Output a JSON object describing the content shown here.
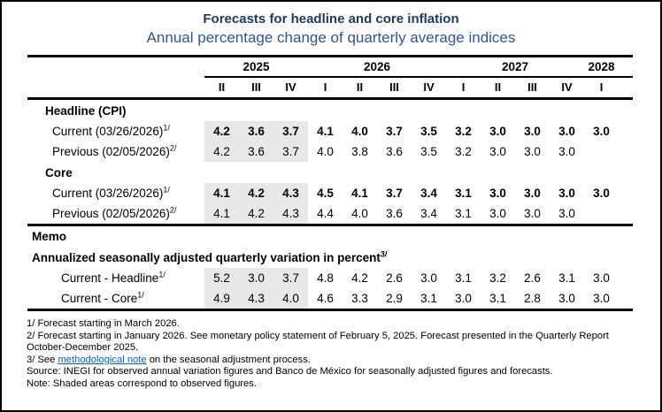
{
  "title": "Forecasts for headline and core inflation",
  "subtitle": "Annual percentage change of quarterly average indices",
  "colors": {
    "title_text": "#1F3864",
    "subtitle_text": "#2F5496",
    "shaded_cells": "#E9E8E8",
    "link": "#0563C1"
  },
  "header": {
    "years": [
      {
        "label": "2025",
        "quarters_spanned": 3
      },
      {
        "label": "2026",
        "quarters_spanned": 4
      },
      {
        "label": "2027",
        "quarters_spanned": 4
      },
      {
        "label": "2028",
        "quarters_spanned": 1
      }
    ],
    "quarters": [
      "II",
      "III",
      "IV",
      "I",
      "II",
      "III",
      "IV",
      "I",
      "II",
      "III",
      "IV",
      "I"
    ]
  },
  "sections": {
    "headline": {
      "label": "Headline (CPI)",
      "current": {
        "label": "Current (03/26/2026)",
        "sup": "1/",
        "values": [
          "4.2",
          "3.6",
          "3.7",
          "4.1",
          "4.0",
          "3.7",
          "3.5",
          "3.2",
          "3.0",
          "3.0",
          "3.0",
          "3.0"
        ]
      },
      "previous": {
        "label": "Previous (02/05/2026)",
        "sup": "2/",
        "values": [
          "4.2",
          "3.6",
          "3.7",
          "4.0",
          "3.8",
          "3.6",
          "3.5",
          "3.2",
          "3.0",
          "3.0",
          "3.0",
          ""
        ]
      }
    },
    "core": {
      "label": "Core",
      "current": {
        "label": "Current (03/26/2026)",
        "sup": "1/",
        "values": [
          "4.1",
          "4.2",
          "4.3",
          "4.5",
          "4.1",
          "3.7",
          "3.4",
          "3.1",
          "3.0",
          "3.0",
          "3.0",
          "3.0"
        ]
      },
      "previous": {
        "label": "Previous (02/05/2026)",
        "sup": "2/",
        "values": [
          "4.1",
          "4.2",
          "4.3",
          "4.4",
          "4.0",
          "3.6",
          "3.4",
          "3.1",
          "3.0",
          "3.0",
          "3.0",
          ""
        ]
      }
    },
    "memo": {
      "label": "Memo",
      "subtitle": "Annualized seasonally adjusted quarterly variation in percent",
      "subtitle_sup": "3/",
      "headline": {
        "label": "Current - Headline",
        "sup": "1/",
        "values": [
          "5.2",
          "3.0",
          "3.7",
          "4.8",
          "4.2",
          "2.6",
          "3.0",
          "3.1",
          "3.2",
          "2.6",
          "3.1",
          "3.0"
        ]
      },
      "core": {
        "label": "Current - Core",
        "sup": "1/",
        "values": [
          "4.9",
          "4.3",
          "4.0",
          "4.6",
          "3.3",
          "2.9",
          "3.1",
          "3.0",
          "3.1",
          "2.8",
          "3.0",
          "3.0"
        ]
      }
    }
  },
  "footnotes": {
    "fn1": "1/ Forecast starting in March 2026.",
    "fn2": "2/ Forecast starting in January 2026. See monetary policy statement of February 5, 2025. Forecast presented in the Quarterly Report October-December 2025.",
    "fn3_pre": "3/ See ",
    "fn3_link": "methodological note",
    "fn3_post": " on the seasonal adjustment process.",
    "source": "Source: INEGI for observed annual variation figures and Banco de México for seasonally adjusted figures and forecasts.",
    "note": "Note: Shaded areas correspond to observed figures."
  }
}
